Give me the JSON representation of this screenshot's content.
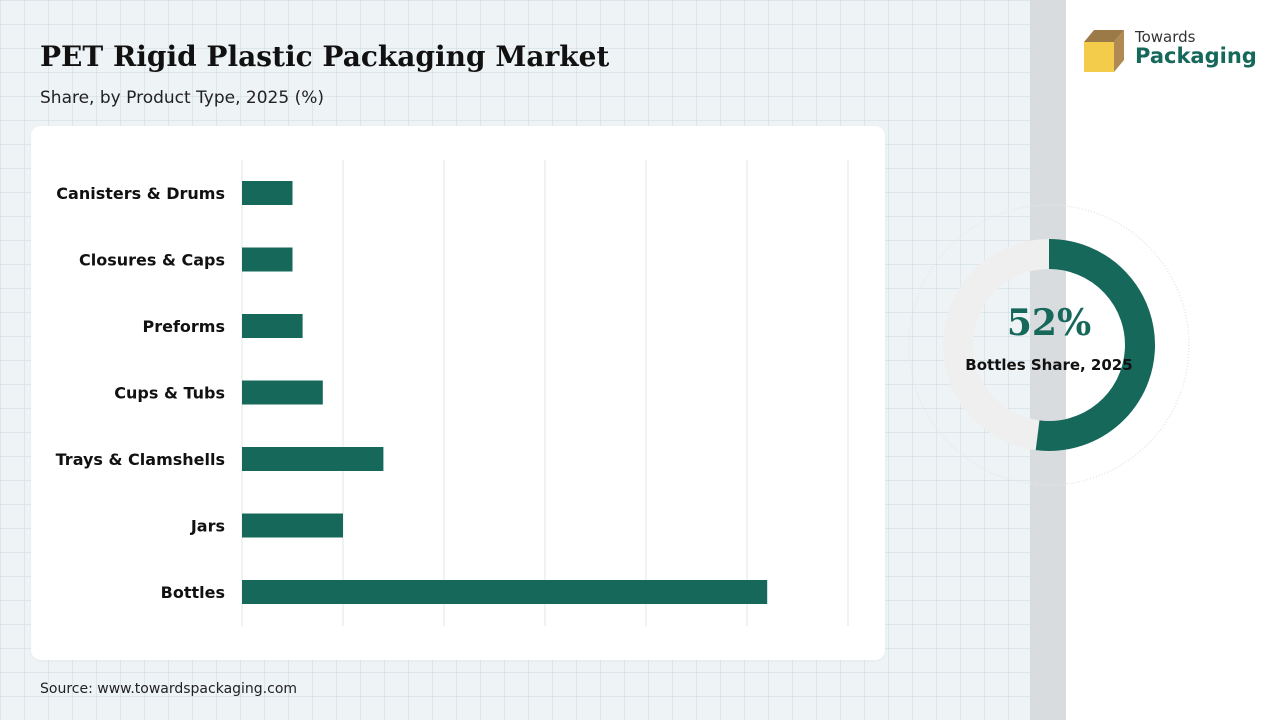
{
  "header": {
    "title": "PET Rigid Plastic Packaging Market",
    "subtitle": "Share, by Product Type, 2025 (%)"
  },
  "brand": {
    "line1": "Towards",
    "line2": "Packaging",
    "icon": "box-logo-icon",
    "accent": "#15685a",
    "box_colors": [
      "#b08a52",
      "#f2cc4a"
    ]
  },
  "chart_data": [
    {
      "type": "bar",
      "orientation": "horizontal",
      "categories": [
        "Canisters & Drums",
        "Closures & Caps",
        "Preforms",
        "Cups & Tubs",
        "Trays & Clamshells",
        "Jars",
        "Bottles"
      ],
      "values": [
        5,
        5,
        6,
        8,
        14,
        10,
        52
      ],
      "xlim": [
        0,
        60
      ],
      "grid": true,
      "bar_color": "#15685a"
    },
    {
      "type": "pie",
      "style": "donut",
      "value": 52,
      "value_label": "52%",
      "caption": "Bottles Share, 2025",
      "colors": [
        "#15685a",
        "#efefef"
      ]
    }
  ],
  "footer": {
    "source": "Source: www.towardspackaging.com"
  }
}
